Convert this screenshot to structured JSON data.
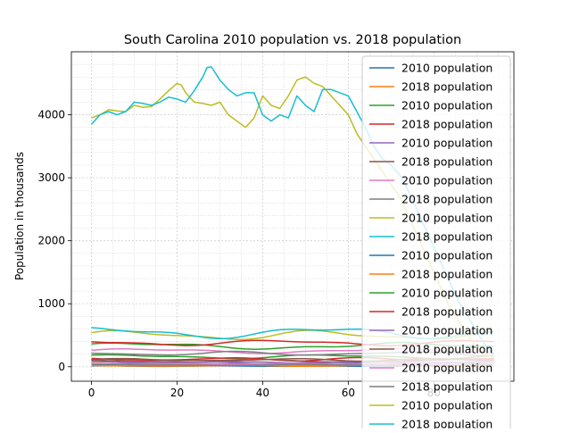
{
  "chart_data": {
    "type": "line",
    "title": "South Carolina 2010 population vs. 2018 population",
    "xlabel": "",
    "ylabel": "Population in thousands",
    "xlim": [
      -4.7,
      98.7
    ],
    "ylim": [
      -230,
      5000
    ],
    "x_ticks": [
      0,
      20,
      40,
      60,
      80
    ],
    "y_ticks": [
      0,
      1000,
      2000,
      3000,
      4000
    ],
    "grid": true,
    "legend_position": "right",
    "colors": [
      "#1f77b4",
      "#ff7f0e",
      "#2ca02c",
      "#d62728",
      "#9467bd",
      "#8c564b",
      "#e377c2",
      "#7f7f7f",
      "#bcbd22",
      "#17becf"
    ],
    "series": [
      {
        "name": "2010 population",
        "base": 20,
        "amp": 10,
        "freq": 1.7,
        "phase": 0.3
      },
      {
        "name": "2018 population",
        "base": 35,
        "amp": 12,
        "freq": 2.1,
        "phase": 1.1
      },
      {
        "name": "2010 population",
        "base": 160,
        "amp": 25,
        "freq": 1.3,
        "phase": 0.6
      },
      {
        "name": "2018 population",
        "base": 120,
        "amp": 20,
        "freq": 1.9,
        "phase": 2.0
      },
      {
        "name": "2010 population",
        "base": 60,
        "amp": 15,
        "freq": 2.4,
        "phase": 0.9
      },
      {
        "name": "2018 population",
        "base": 90,
        "amp": 18,
        "freq": 1.5,
        "phase": 1.7
      },
      {
        "name": "2010 population",
        "base": 250,
        "amp": 30,
        "freq": 1.1,
        "phase": 0.2
      },
      {
        "name": "2018 population",
        "base": 210,
        "amp": 25,
        "freq": 1.6,
        "phase": 2.5
      },
      {
        "name": "2010 population",
        "base": 500,
        "amp": 60,
        "freq": 1.4,
        "phase": 0.4
      },
      {
        "name": "2018 population",
        "base": 540,
        "amp": 70,
        "freq": 1.2,
        "phase": 1.3
      },
      {
        "name": "2010 population",
        "base": 10,
        "amp": 5,
        "freq": 2.2,
        "phase": 0.8
      },
      {
        "name": "2018 population",
        "base": 15,
        "amp": 6,
        "freq": 1.8,
        "phase": 1.9
      },
      {
        "name": "2010 population",
        "base": 330,
        "amp": 40,
        "freq": 1.0,
        "phase": 0.5
      },
      {
        "name": "2018 population",
        "base": 380,
        "amp": 35,
        "freq": 1.3,
        "phase": 2.2
      },
      {
        "name": "2010 population",
        "base": 70,
        "amp": 12,
        "freq": 2.0,
        "phase": 1.4
      },
      {
        "name": "2018 population",
        "base": 110,
        "amp": 16,
        "freq": 1.7,
        "phase": 0.1
      },
      {
        "name": "2010 population",
        "base": 45,
        "amp": 9,
        "freq": 2.5,
        "phase": 2.7
      },
      {
        "name": "2018 population",
        "base": 28,
        "amp": 8,
        "freq": 1.4,
        "phase": 0.7
      },
      {
        "name": "2010 population",
        "points": [
          [
            0,
            3950
          ],
          [
            2,
            4000
          ],
          [
            4,
            4080
          ],
          [
            6,
            4060
          ],
          [
            8,
            4050
          ],
          [
            10,
            4150
          ],
          [
            12,
            4120
          ],
          [
            14,
            4130
          ],
          [
            16,
            4250
          ],
          [
            18,
            4380
          ],
          [
            20,
            4500
          ],
          [
            21,
            4470
          ],
          [
            22,
            4350
          ],
          [
            24,
            4200
          ],
          [
            26,
            4180
          ],
          [
            28,
            4150
          ],
          [
            30,
            4200
          ],
          [
            31,
            4100
          ],
          [
            32,
            4000
          ],
          [
            34,
            3900
          ],
          [
            36,
            3800
          ],
          [
            38,
            3950
          ],
          [
            40,
            4300
          ],
          [
            42,
            4150
          ],
          [
            44,
            4100
          ],
          [
            46,
            4300
          ],
          [
            48,
            4550
          ],
          [
            50,
            4600
          ],
          [
            52,
            4500
          ],
          [
            54,
            4450
          ],
          [
            56,
            4300
          ],
          [
            58,
            4150
          ],
          [
            60,
            4000
          ],
          [
            62,
            3700
          ],
          [
            64,
            3500
          ],
          [
            66,
            3300
          ],
          [
            68,
            3100
          ],
          [
            70,
            2900
          ],
          [
            72,
            2700
          ],
          [
            74,
            2400
          ],
          [
            76,
            2100
          ],
          [
            78,
            1800
          ],
          [
            80,
            1500
          ],
          [
            82,
            1200
          ],
          [
            84,
            900
          ],
          [
            86,
            700
          ],
          [
            88,
            500
          ],
          [
            90,
            300
          ],
          [
            92,
            200
          ],
          [
            94,
            150
          ]
        ]
      },
      {
        "name": "2018 population",
        "points": [
          [
            0,
            3850
          ],
          [
            2,
            4000
          ],
          [
            4,
            4050
          ],
          [
            6,
            4000
          ],
          [
            8,
            4050
          ],
          [
            10,
            4200
          ],
          [
            12,
            4180
          ],
          [
            14,
            4150
          ],
          [
            16,
            4200
          ],
          [
            18,
            4280
          ],
          [
            20,
            4250
          ],
          [
            22,
            4200
          ],
          [
            24,
            4380
          ],
          [
            26,
            4600
          ],
          [
            27,
            4750
          ],
          [
            28,
            4760
          ],
          [
            30,
            4550
          ],
          [
            32,
            4400
          ],
          [
            34,
            4300
          ],
          [
            36,
            4350
          ],
          [
            38,
            4350
          ],
          [
            40,
            4000
          ],
          [
            42,
            3900
          ],
          [
            44,
            4000
          ],
          [
            46,
            3950
          ],
          [
            48,
            4300
          ],
          [
            50,
            4150
          ],
          [
            52,
            4050
          ],
          [
            54,
            4400
          ],
          [
            56,
            4400
          ],
          [
            58,
            4350
          ],
          [
            60,
            4300
          ],
          [
            62,
            4050
          ],
          [
            64,
            3800
          ],
          [
            66,
            3500
          ],
          [
            68,
            3300
          ],
          [
            70,
            3200
          ],
          [
            72,
            3050
          ],
          [
            74,
            2800
          ],
          [
            76,
            2500
          ],
          [
            78,
            2200
          ],
          [
            80,
            1900
          ],
          [
            82,
            1600
          ],
          [
            84,
            1300
          ],
          [
            86,
            1000
          ],
          [
            88,
            800
          ],
          [
            90,
            550
          ],
          [
            92,
            350
          ],
          [
            94,
            200
          ]
        ]
      }
    ]
  }
}
